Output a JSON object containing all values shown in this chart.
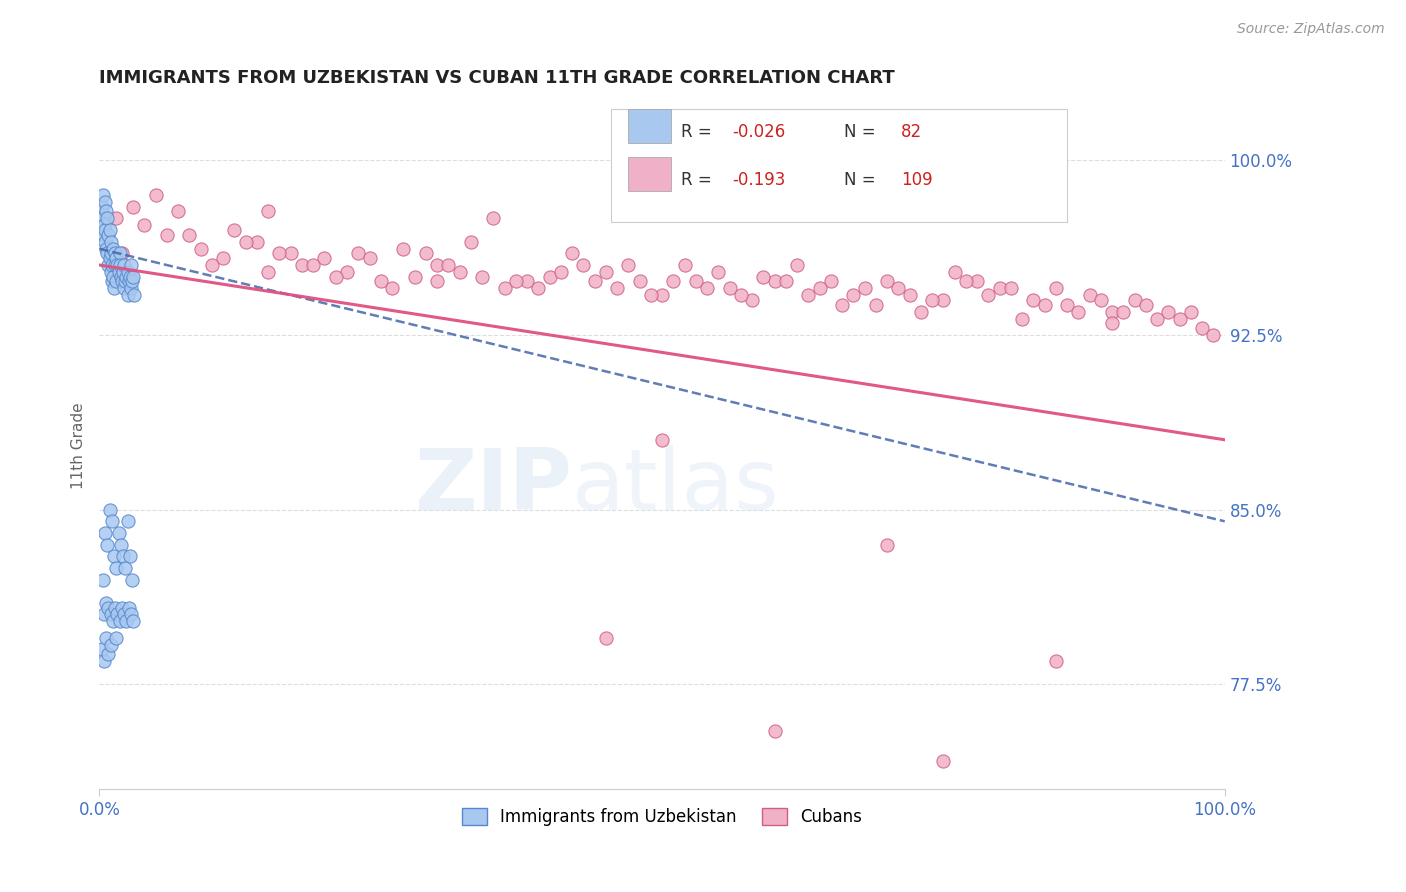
{
  "title": "IMMIGRANTS FROM UZBEKISTAN VS CUBAN 11TH GRADE CORRELATION CHART",
  "source_text": "Source: ZipAtlas.com",
  "ylabel": "11th Grade",
  "xlim": [
    0.0,
    100.0
  ],
  "ylim": [
    73.0,
    102.5
  ],
  "ytick_labels": [
    "77.5%",
    "85.0%",
    "92.5%",
    "100.0%"
  ],
  "ytick_values": [
    77.5,
    85.0,
    92.5,
    100.0
  ],
  "xtick_labels": [
    "0.0%",
    "100.0%"
  ],
  "xtick_values": [
    0.0,
    100.0
  ],
  "color_uzbek_fill": "#a8c8f0",
  "color_uzbek_edge": "#5588cc",
  "color_cuban_fill": "#f0b0c8",
  "color_cuban_edge": "#d06080",
  "color_uzbek_trendline": "#4466aa",
  "color_cuban_trendline": "#e05080",
  "bg_color": "#ffffff",
  "grid_color": "#dddddd",
  "uzbek_x": [
    0.2,
    0.3,
    0.3,
    0.4,
    0.4,
    0.5,
    0.5,
    0.5,
    0.6,
    0.6,
    0.7,
    0.7,
    0.8,
    0.8,
    0.9,
    0.9,
    1.0,
    1.0,
    1.0,
    1.1,
    1.1,
    1.2,
    1.2,
    1.3,
    1.4,
    1.4,
    1.5,
    1.5,
    1.6,
    1.7,
    1.8,
    1.8,
    1.9,
    2.0,
    2.1,
    2.2,
    2.2,
    2.3,
    2.4,
    2.5,
    2.5,
    2.6,
    2.7,
    2.8,
    2.8,
    2.9,
    3.0,
    3.1,
    0.3,
    0.5,
    0.7,
    0.9,
    1.1,
    1.3,
    1.5,
    1.7,
    1.9,
    2.1,
    2.3,
    2.5,
    2.7,
    2.9,
    0.4,
    0.6,
    0.8,
    1.0,
    1.2,
    1.4,
    1.6,
    1.8,
    2.0,
    2.2,
    2.4,
    2.6,
    2.8,
    3.0,
    0.2,
    0.4,
    0.6,
    0.8,
    1.0,
    1.5
  ],
  "uzbek_y": [
    98.0,
    97.5,
    98.5,
    97.2,
    96.8,
    98.2,
    97.0,
    96.5,
    97.8,
    96.2,
    97.5,
    96.0,
    96.8,
    95.5,
    97.0,
    95.8,
    96.5,
    95.2,
    96.0,
    95.5,
    94.8,
    96.2,
    95.0,
    94.5,
    96.0,
    95.5,
    95.8,
    94.8,
    95.5,
    95.2,
    96.0,
    95.5,
    95.0,
    94.8,
    95.2,
    95.5,
    94.5,
    94.8,
    95.0,
    95.2,
    94.2,
    94.8,
    95.0,
    95.5,
    94.5,
    94.8,
    95.0,
    94.2,
    82.0,
    84.0,
    83.5,
    85.0,
    84.5,
    83.0,
    82.5,
    84.0,
    83.5,
    83.0,
    82.5,
    84.5,
    83.0,
    82.0,
    80.5,
    81.0,
    80.8,
    80.5,
    80.2,
    80.8,
    80.5,
    80.2,
    80.8,
    80.5,
    80.2,
    80.8,
    80.5,
    80.2,
    79.0,
    78.5,
    79.5,
    78.8,
    79.2,
    79.5
  ],
  "cuban_x": [
    1.5,
    3.0,
    5.0,
    7.0,
    8.0,
    10.0,
    12.0,
    14.0,
    15.0,
    17.0,
    18.0,
    20.0,
    22.0,
    23.0,
    25.0,
    27.0,
    28.0,
    30.0,
    32.0,
    33.0,
    35.0,
    36.0,
    38.0,
    40.0,
    42.0,
    43.0,
    45.0,
    46.0,
    48.0,
    50.0,
    52.0,
    53.0,
    55.0,
    56.0,
    58.0,
    60.0,
    62.0,
    63.0,
    65.0,
    66.0,
    68.0,
    70.0,
    72.0,
    73.0,
    75.0,
    76.0,
    78.0,
    80.0,
    82.0,
    83.0,
    85.0,
    86.0,
    88.0,
    90.0,
    92.0,
    93.0,
    95.0,
    96.0,
    98.0,
    4.0,
    6.0,
    9.0,
    11.0,
    13.0,
    16.0,
    19.0,
    21.0,
    24.0,
    26.0,
    29.0,
    31.0,
    34.0,
    37.0,
    39.0,
    41.0,
    44.0,
    47.0,
    49.0,
    51.0,
    54.0,
    57.0,
    59.0,
    61.0,
    64.0,
    67.0,
    69.0,
    71.0,
    74.0,
    77.0,
    79.0,
    81.0,
    84.0,
    87.0,
    89.0,
    91.0,
    94.0,
    97.0,
    99.0,
    2.0,
    15.0,
    30.0,
    45.0,
    60.0,
    75.0,
    90.0,
    50.0,
    70.0,
    85.0
  ],
  "cuban_y": [
    97.5,
    98.0,
    98.5,
    97.8,
    96.8,
    95.5,
    97.0,
    96.5,
    97.8,
    96.0,
    95.5,
    95.8,
    95.2,
    96.0,
    94.8,
    96.2,
    95.0,
    95.5,
    95.2,
    96.5,
    97.5,
    94.5,
    94.8,
    95.0,
    96.0,
    95.5,
    95.2,
    94.5,
    94.8,
    94.2,
    95.5,
    94.8,
    95.2,
    94.5,
    94.0,
    94.8,
    95.5,
    94.2,
    94.8,
    93.8,
    94.5,
    94.8,
    94.2,
    93.5,
    94.0,
    95.2,
    94.8,
    94.5,
    93.2,
    94.0,
    94.5,
    93.8,
    94.2,
    93.5,
    94.0,
    93.8,
    93.5,
    93.2,
    92.8,
    97.2,
    96.8,
    96.2,
    95.8,
    96.5,
    96.0,
    95.5,
    95.0,
    95.8,
    94.5,
    96.0,
    95.5,
    95.0,
    94.8,
    94.5,
    95.2,
    94.8,
    95.5,
    94.2,
    94.8,
    94.5,
    94.2,
    95.0,
    94.8,
    94.5,
    94.2,
    93.8,
    94.5,
    94.0,
    94.8,
    94.2,
    94.5,
    93.8,
    93.5,
    94.0,
    93.5,
    93.2,
    93.5,
    92.5,
    96.0,
    95.2,
    94.8,
    79.5,
    75.5,
    74.2,
    93.0,
    88.0,
    83.5,
    78.5
  ]
}
